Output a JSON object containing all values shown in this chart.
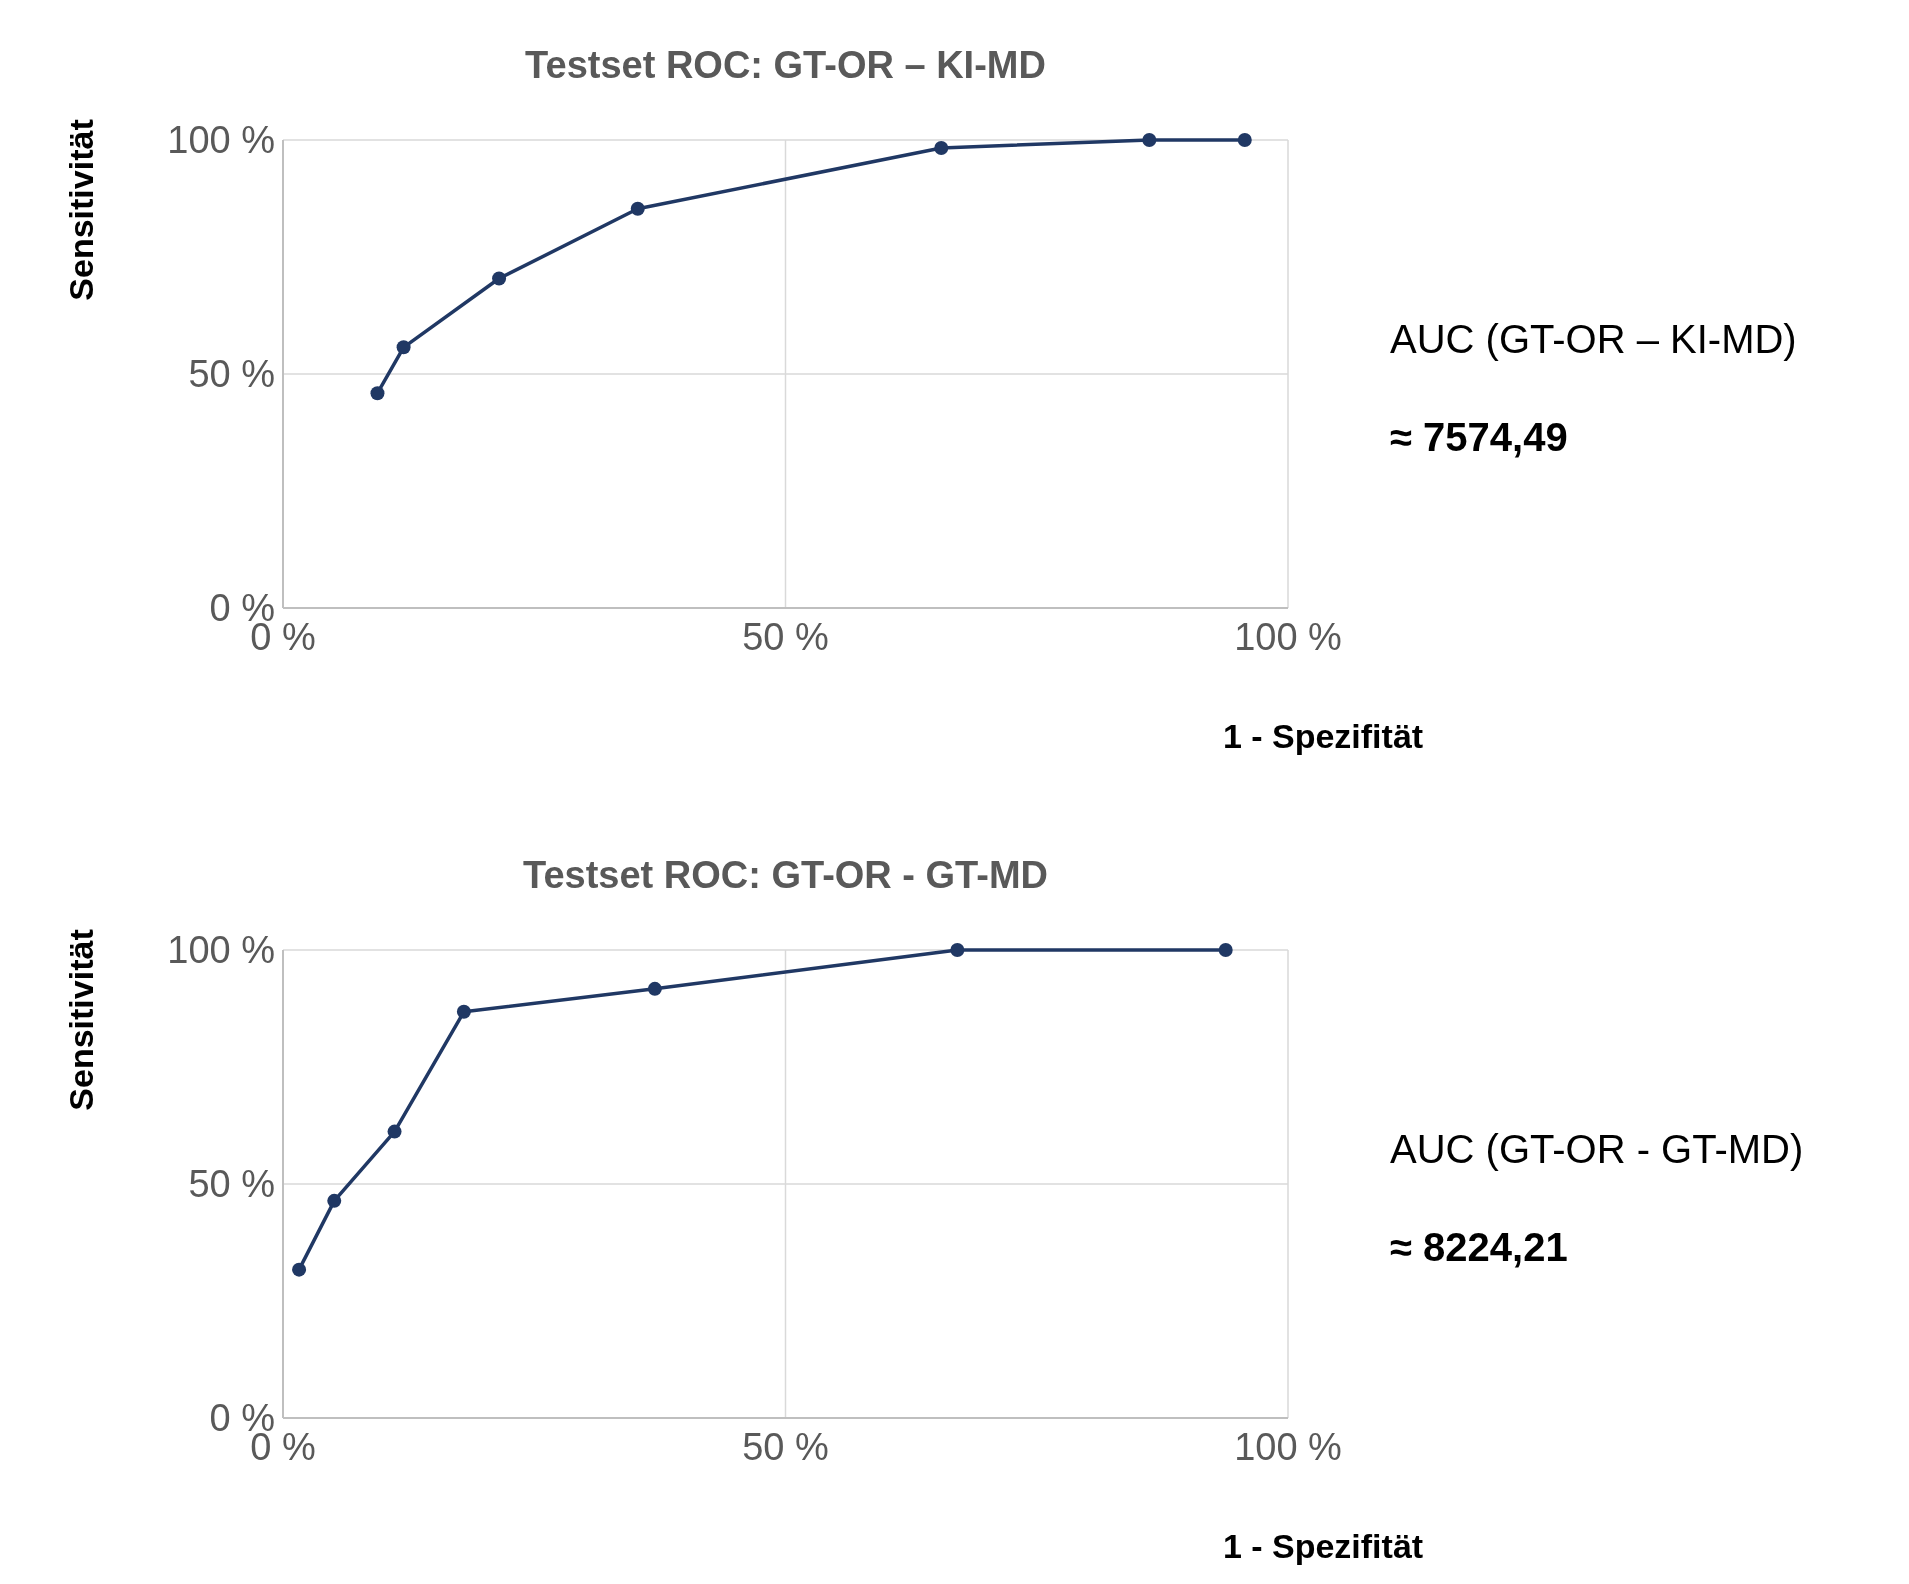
{
  "chart_data": [
    {
      "type": "line",
      "title": "Testset ROC: GT-OR – KI-MD",
      "xlabel": "1 - Spezifität",
      "ylabel": "Sensitivität",
      "x": [
        9.4,
        12.0,
        21.5,
        35.3,
        65.5,
        86.2,
        95.7
      ],
      "series": [
        {
          "color": "#203864",
          "values": [
            45.9,
            55.7,
            70.4,
            85.3,
            98.3,
            100,
            100
          ]
        }
      ],
      "xlim": [
        0,
        100
      ],
      "ylim": [
        0,
        100
      ],
      "xticks": [
        {
          "value": 0,
          "label": "0 %"
        },
        {
          "value": 50,
          "label": "50 %"
        },
        {
          "value": 100,
          "label": "100 %"
        }
      ],
      "yticks": [
        {
          "value": 0,
          "label": "0 %"
        },
        {
          "value": 50,
          "label": "50 %"
        },
        {
          "value": 100,
          "label": "100 %"
        }
      ],
      "grid": true,
      "marker": "circle",
      "annotations": [
        "AUC (GT-OR – KI-MD)",
        "≈ 7574,49"
      ]
    },
    {
      "type": "line",
      "title": "Testset ROC: GT-OR - GT-MD",
      "xlabel": "1 - Spezifität",
      "ylabel": "Sensitivität",
      "x": [
        1.6,
        5.1,
        11.1,
        18.0,
        37.0,
        67.1,
        93.8
      ],
      "series": [
        {
          "color": "#203864",
          "values": [
            31.7,
            46.4,
            61.2,
            86.8,
            91.7,
            100,
            100
          ]
        }
      ],
      "xlim": [
        0,
        100
      ],
      "ylim": [
        0,
        100
      ],
      "xticks": [
        {
          "value": 0,
          "label": "0 %"
        },
        {
          "value": 50,
          "label": "50 %"
        },
        {
          "value": 100,
          "label": "100 %"
        }
      ],
      "yticks": [
        {
          "value": 0,
          "label": "0 %"
        },
        {
          "value": 50,
          "label": "50 %"
        },
        {
          "value": 100,
          "label": "100 %"
        }
      ],
      "grid": true,
      "marker": "circle",
      "annotations": [
        "AUC (GT-OR - GT-MD)",
        "≈ 8224,21"
      ]
    }
  ]
}
